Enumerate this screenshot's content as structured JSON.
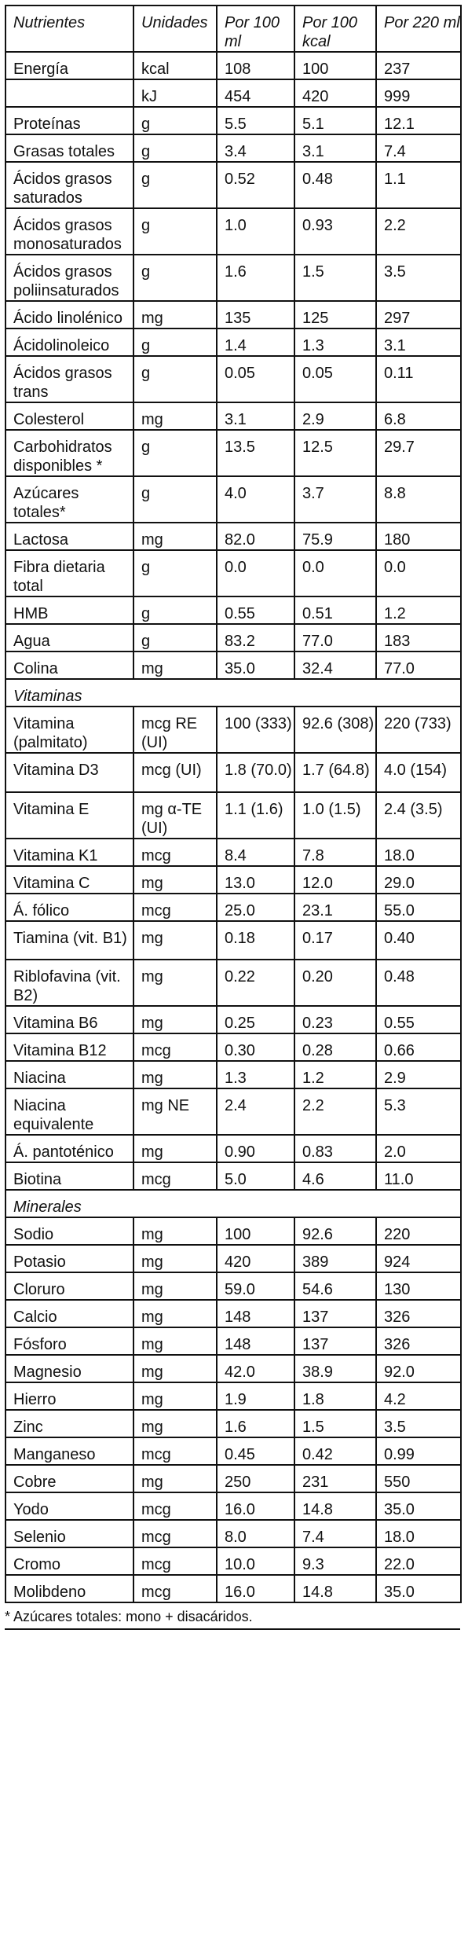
{
  "table": {
    "headers": [
      "Nutrientes",
      "Unidades",
      "Por 100 ml",
      "Por 100 kcal",
      "Por 220 ml"
    ],
    "rows": [
      [
        "Energía",
        "kcal",
        "108",
        "100",
        "237"
      ],
      [
        "",
        "kJ",
        "454",
        "420",
        "999"
      ],
      [
        "Proteínas",
        "g",
        "5.5",
        "5.1",
        "12.1"
      ],
      [
        "Grasas totales",
        "g",
        "3.4",
        "3.1",
        "7.4"
      ],
      [
        "Ácidos grasos saturados",
        "g",
        "0.52",
        "0.48",
        "1.1"
      ],
      [
        "Ácidos grasos monosaturados",
        "g",
        "1.0",
        "0.93",
        "2.2"
      ],
      [
        "Ácidos grasos poliinsaturados",
        "g",
        "1.6",
        "1.5",
        "3.5"
      ],
      [
        "Ácido linolénico",
        "mg",
        "135",
        "125",
        "297"
      ],
      [
        "Ácidolinoleico",
        "g",
        "1.4",
        "1.3",
        "3.1"
      ],
      [
        "Ácidos grasos trans",
        "g",
        "0.05",
        "0.05",
        "0.11"
      ],
      [
        "Colesterol",
        "mg",
        "3.1",
        "2.9",
        "6.8"
      ],
      [
        "Carbohidratos disponibles *",
        "g",
        "13.5",
        "12.5",
        "29.7"
      ],
      [
        "Azúcares totales*",
        "g",
        "4.0",
        "3.7",
        "8.8"
      ],
      [
        "Lactosa",
        "mg",
        "82.0",
        "75.9",
        "180"
      ],
      [
        "Fibra dietaria total",
        "g",
        "0.0",
        "0.0",
        "0.0"
      ],
      [
        "HMB",
        "g",
        "0.55",
        "0.51",
        "1.2"
      ],
      [
        "Agua",
        "g",
        "83.2",
        "77.0",
        "183"
      ],
      [
        "Colina",
        "mg",
        "35.0",
        "32.4",
        "77.0"
      ],
      {
        "section": "Vitaminas"
      },
      [
        "Vitamina (palmitato)",
        "mcg RE (UI)",
        "100 (333)",
        "92.6 (308)",
        "220 (733)"
      ],
      [
        "Vitamina D3",
        "mcg (UI)",
        "1.8 (70.0)",
        "1.7 (64.8)",
        "4.0 (154)"
      ],
      [
        "Vitamina E",
        "mg α-TE (UI)",
        "1.1 (1.6)",
        "1.0 (1.5)",
        "2.4 (3.5)"
      ],
      [
        "Vitamina K1",
        "mcg",
        "8.4",
        "7.8",
        "18.0"
      ],
      [
        "Vitamina C",
        "mg",
        "13.0",
        "12.0",
        "29.0"
      ],
      [
        "Á. fólico",
        "mcg",
        "25.0",
        "23.1",
        "55.0"
      ],
      [
        "Tiamina (vit. B1)",
        "mg",
        "0.18",
        "0.17",
        "0.40"
      ],
      [
        "Riblofavina (vit. B2)",
        "mg",
        "0.22",
        "0.20",
        "0.48"
      ],
      [
        "Vitamina B6",
        "mg",
        "0.25",
        "0.23",
        "0.55"
      ],
      [
        "Vitamina B12",
        "mcg",
        "0.30",
        "0.28",
        "0.66"
      ],
      [
        "Niacina",
        "mg",
        "1.3",
        "1.2",
        "2.9"
      ],
      [
        "Niacina equivalente",
        "mg NE",
        "2.4",
        "2.2",
        "5.3"
      ],
      [
        "Á. pantoténico",
        "mg",
        "0.90",
        "0.83",
        "2.0"
      ],
      [
        "Biotina",
        "mcg",
        "5.0",
        "4.6",
        "11.0"
      ],
      {
        "section": "Minerales"
      },
      [
        "Sodio",
        "mg",
        "100",
        "92.6",
        "220"
      ],
      [
        "Potasio",
        "mg",
        "420",
        "389",
        "924"
      ],
      [
        "Cloruro",
        "mg",
        "59.0",
        "54.6",
        "130"
      ],
      [
        "Calcio",
        "mg",
        "148",
        "137",
        "326"
      ],
      [
        "Fósforo",
        "mg",
        "148",
        "137",
        "326"
      ],
      [
        "Magnesio",
        "mg",
        "42.0",
        "38.9",
        "92.0"
      ],
      [
        "Hierro",
        "mg",
        "1.9",
        "1.8",
        "4.2"
      ],
      [
        "Zinc",
        "mg",
        "1.6",
        "1.5",
        "3.5"
      ],
      [
        "Manganeso",
        "mcg",
        "0.45",
        "0.42",
        "0.99"
      ],
      [
        "Cobre",
        "mg",
        "250",
        "231",
        "550"
      ],
      [
        "Yodo",
        "mcg",
        "16.0",
        "14.8",
        "35.0"
      ],
      [
        "Selenio",
        "mcg",
        "8.0",
        "7.4",
        "18.0"
      ],
      [
        "Cromo",
        "mcg",
        "10.0",
        "9.3",
        "22.0"
      ],
      [
        "Molibdeno",
        "mcg",
        "16.0",
        "14.8",
        "35.0"
      ]
    ]
  },
  "footnote": "* Azúcares totales: mono + disacáridos."
}
